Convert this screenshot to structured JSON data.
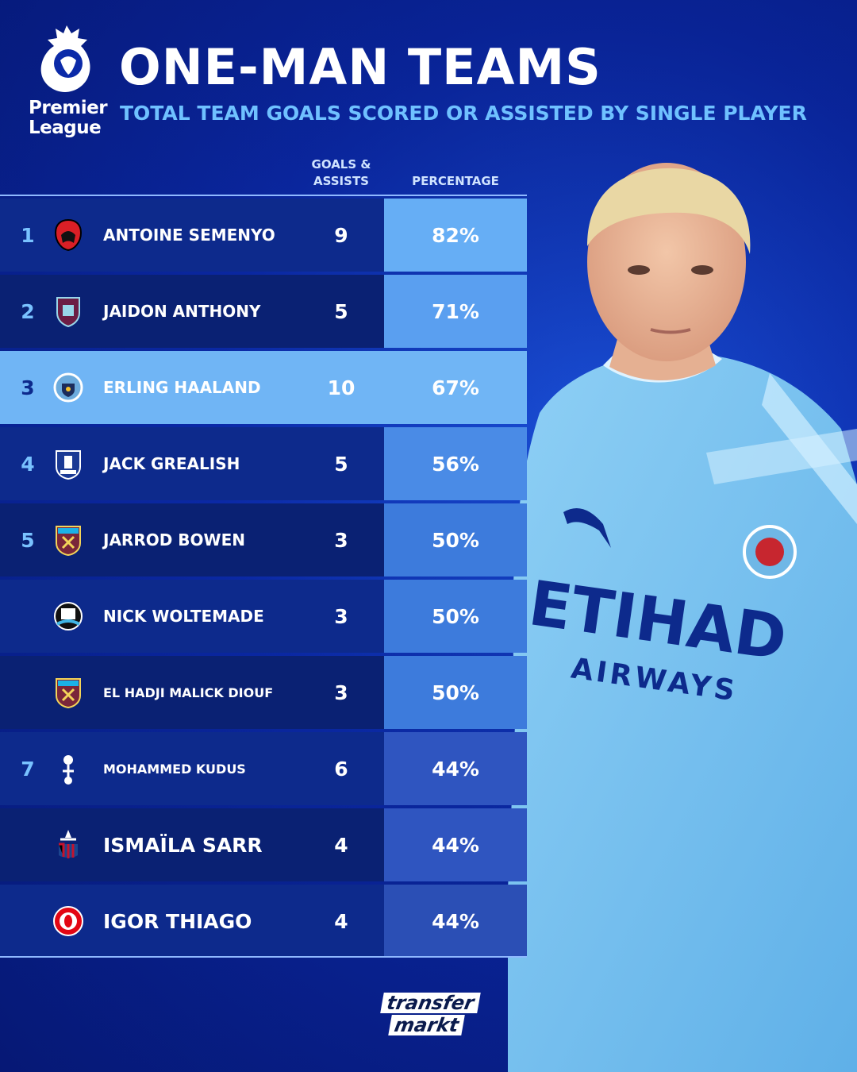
{
  "header": {
    "logo_text_line1": "Premier",
    "logo_text_line2": "League",
    "title": "ONE-MAN TEAMS",
    "subtitle": "TOTAL TEAM GOALS SCORED OR ASSISTED BY SINGLE PLAYER"
  },
  "columns": {
    "ga_line1": "GOALS &",
    "ga_line2": "ASSISTS",
    "percentage": "PERCENTAGE"
  },
  "rows": [
    {
      "rank": "1",
      "name": "ANTOINE SEMENYO",
      "ga": "9",
      "pct": "82%",
      "pct_value": 82,
      "badge": "bournemouth-badge-icon"
    },
    {
      "rank": "2",
      "name": "JAIDON ANTHONY",
      "ga": "5",
      "pct": "71%",
      "pct_value": 71,
      "badge": "burnley-badge-icon"
    },
    {
      "rank": "3",
      "name": "ERLING HAALAND",
      "ga": "10",
      "pct": "67%",
      "pct_value": 67,
      "badge": "man-city-badge-icon"
    },
    {
      "rank": "4",
      "name": "JACK GREALISH",
      "ga": "5",
      "pct": "56%",
      "pct_value": 56,
      "badge": "everton-badge-icon"
    },
    {
      "rank": "5",
      "name": "JARROD BOWEN",
      "ga": "3",
      "pct": "50%",
      "pct_value": 50,
      "badge": "west-ham-badge-icon"
    },
    {
      "rank": "",
      "name": "NICK WOLTEMADE",
      "ga": "3",
      "pct": "50%",
      "pct_value": 50,
      "badge": "newcastle-badge-icon"
    },
    {
      "rank": "",
      "name": "EL HADJI MALICK DIOUF",
      "ga": "3",
      "pct": "50%",
      "pct_value": 50,
      "badge": "west-ham-badge-icon"
    },
    {
      "rank": "7",
      "name": "MOHAMMED KUDUS",
      "ga": "6",
      "pct": "44%",
      "pct_value": 44,
      "badge": "tottenham-badge-icon"
    },
    {
      "rank": "",
      "name": "ISMAÏLA SARR",
      "ga": "4",
      "pct": "44%",
      "pct_value": 44,
      "badge": "crystal-palace-badge-icon"
    },
    {
      "rank": "",
      "name": "IGOR THIAGO",
      "ga": "4",
      "pct": "44%",
      "pct_value": 44,
      "badge": "brentford-badge-icon"
    }
  ],
  "player_shirt": {
    "sponsor_line1": "ETIHAD",
    "sponsor_line2": "AIRWAYS"
  },
  "footer": {
    "brand_line1": "transfer",
    "brand_line2": "markt"
  },
  "colors": {
    "background": "#0b2aa8",
    "accent": "#6fc1ff",
    "highlight_row": "#70b5f5",
    "pct_high": "#66aef5",
    "pct_low": "#2f55c0"
  }
}
